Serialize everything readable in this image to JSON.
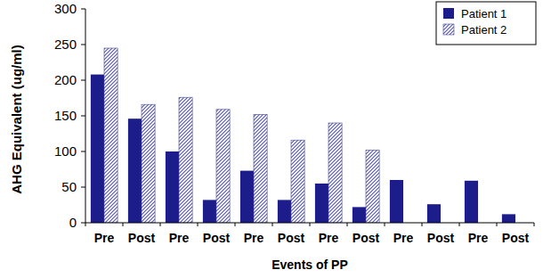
{
  "chart_data": {
    "type": "bar",
    "x_label": "Events of PP",
    "y_label": "AHG Equivalent (ug/ml)",
    "categories": [
      "Pre",
      "Post",
      "Pre",
      "Post",
      "Pre",
      "Post",
      "Pre",
      "Post",
      "Pre",
      "Post",
      "Pre",
      "Post"
    ],
    "series": [
      {
        "name": "Patient 1",
        "color": "#1c1c8a",
        "values": [
          208,
          146,
          100,
          32,
          73,
          32,
          55,
          22,
          60,
          26,
          59,
          12
        ]
      },
      {
        "name": "Patient 2",
        "color": "#5a5aa8",
        "values": [
          245,
          166,
          176,
          159,
          152,
          116,
          140,
          102,
          null,
          null,
          null,
          null
        ]
      }
    ],
    "ylim": [
      0,
      300
    ],
    "yticks": [
      0,
      50,
      100,
      150,
      200,
      250,
      300
    ],
    "grid": false,
    "legend": "top-right"
  }
}
